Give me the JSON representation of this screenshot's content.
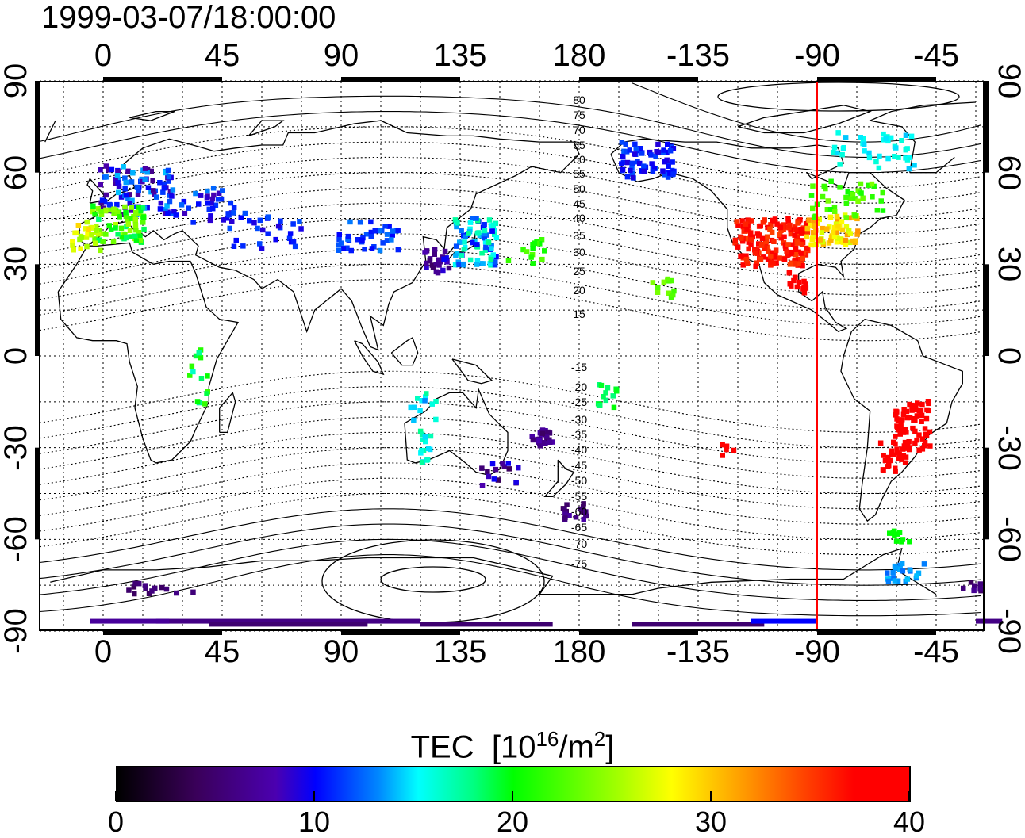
{
  "title": "1999-03-07/18:00:00",
  "axes": {
    "top_ticks": [
      "0",
      "45",
      "90",
      "135",
      "180",
      "-135",
      "-90",
      "-45"
    ],
    "bottom_ticks": [
      "0",
      "45",
      "90",
      "135",
      "180",
      "-135",
      "-90",
      "-45"
    ],
    "left_ticks": [
      "90",
      "60",
      "30",
      "0",
      "-30",
      "-60",
      "-90"
    ],
    "right_ticks": [
      "90",
      "60",
      "30",
      "0",
      "-30",
      "-60",
      "-90"
    ]
  },
  "contour_labels": [
    "80",
    "75",
    "70",
    "65",
    "60",
    "55",
    "50",
    "45",
    "40",
    "35",
    "30",
    "25",
    "20",
    "15",
    "-15",
    "-20",
    "-25",
    "-30",
    "-35",
    "-40",
    "-45",
    "-50",
    "-55",
    "-60",
    "-65",
    "-70",
    "-75"
  ],
  "colorbar": {
    "title": "TEC",
    "unit_prefix": "[10",
    "unit_exp": "16",
    "unit_mid": "/m",
    "unit_exp2": "2",
    "unit_suffix": "]",
    "labels": [
      "0",
      "10",
      "20",
      "30",
      "40"
    ],
    "range": [
      0,
      40
    ]
  },
  "marker_longitude": -90,
  "colors": {
    "marker": "#ff0000",
    "frame": "#000000"
  }
}
